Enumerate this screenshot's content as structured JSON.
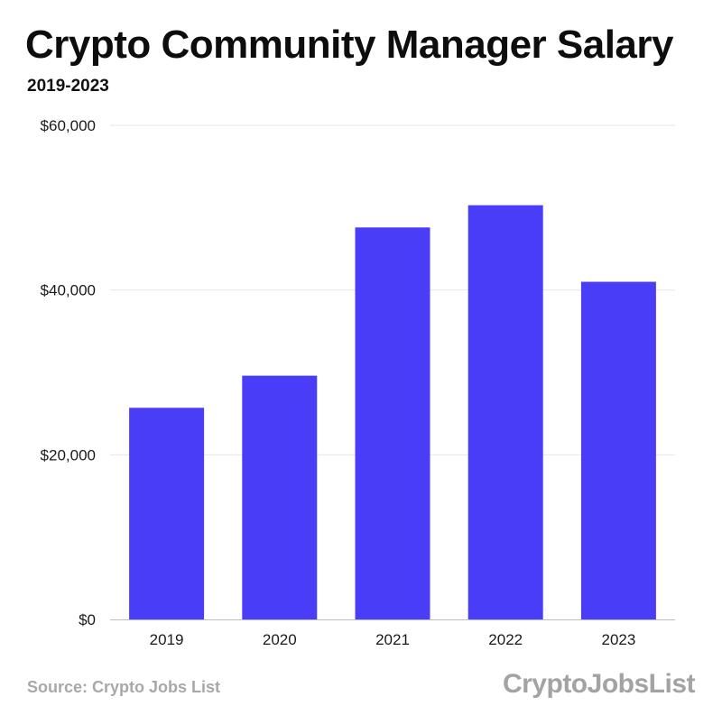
{
  "title": "Crypto Community Manager Salary",
  "subtitle": "2019-2023",
  "source": "Source: Crypto Jobs List",
  "logo_text": "CryptoJobsList",
  "colors": {
    "bar": "#4a3df7",
    "grid": "#e6e6e6",
    "axis": "#bdbdbd",
    "footer": "#a8a8a8"
  },
  "chart_data": {
    "type": "bar",
    "categories": [
      "2019",
      "2020",
      "2021",
      "2022",
      "2023"
    ],
    "values": [
      25700,
      29600,
      47600,
      50300,
      41000
    ],
    "ylim": [
      0,
      60000
    ],
    "yticks": [
      0,
      20000,
      40000,
      60000
    ],
    "ytick_labels": [
      "$0",
      "$20,000",
      "$40,000",
      "$60,000"
    ],
    "xlabel": "",
    "ylabel": "",
    "grid": true,
    "legend": "none"
  }
}
